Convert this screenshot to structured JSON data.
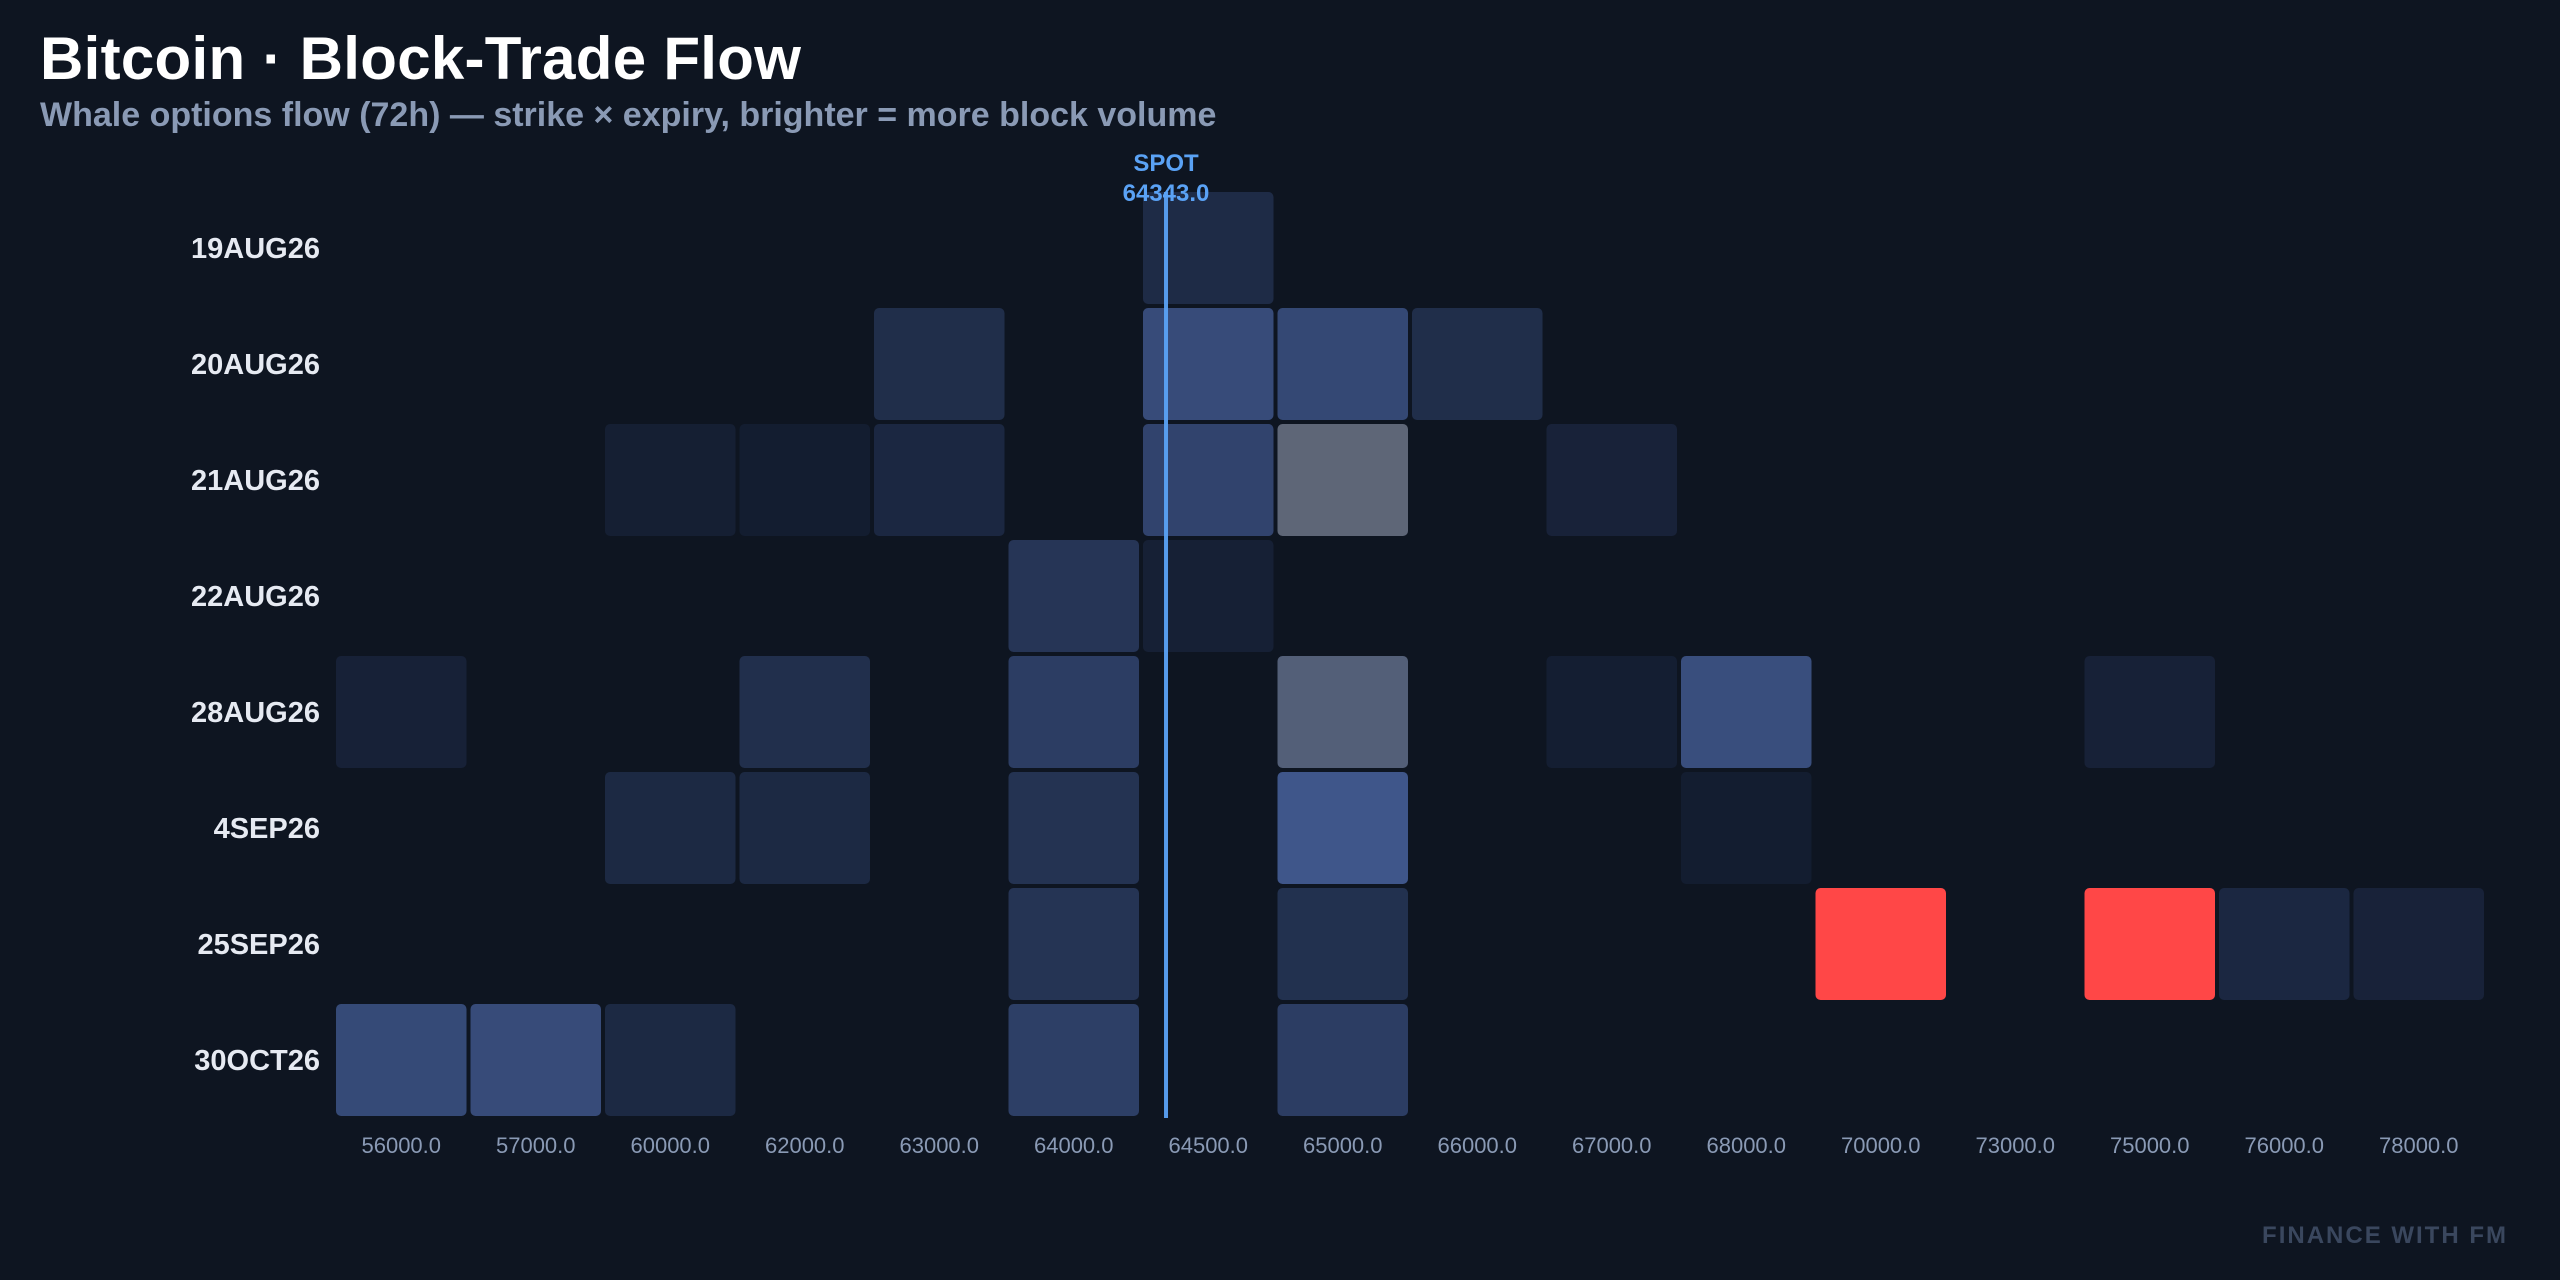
{
  "header": {
    "title": "Bitcoin · Block-Trade Flow",
    "subtitle": "Whale options flow (72h) — strike × expiry, brighter = more block volume"
  },
  "watermark": "FINANCE WITH FM",
  "colors": {
    "background": "#0e1521",
    "cell_low": "#121b2d",
    "cell_high": "#41598f",
    "cell_hot": "#ff4747",
    "cell_grey_low": "#4b5a78",
    "cell_grey_high": "#5e6677",
    "spot_line": "#5aa2f5"
  },
  "chart_data": {
    "type": "heatmap",
    "title": "Bitcoin · Block-Trade Flow",
    "xlabel": "",
    "ylabel": "",
    "x_categories": [
      "56000.0",
      "57000.0",
      "60000.0",
      "62000.0",
      "63000.0",
      "64000.0",
      "64500.0",
      "65000.0",
      "66000.0",
      "67000.0",
      "68000.0",
      "70000.0",
      "73000.0",
      "75000.0",
      "76000.0",
      "78000.0"
    ],
    "y_categories": [
      "19AUG26",
      "20AUG26",
      "21AUG26",
      "22AUG26",
      "28AUG26",
      "4SEP26",
      "25SEP26",
      "30OCT26"
    ],
    "spot": {
      "label": "SPOT",
      "value": "64343.0",
      "x": 64343.0
    },
    "legend": "none",
    "grid": false,
    "cells": [
      {
        "y": "19AUG26",
        "x": "64500.0",
        "v": 0.25,
        "kind": "blue"
      },
      {
        "y": "20AUG26",
        "x": "63000.0",
        "v": 0.3,
        "kind": "blue"
      },
      {
        "y": "20AUG26",
        "x": "64500.0",
        "v": 0.78,
        "kind": "blue"
      },
      {
        "y": "20AUG26",
        "x": "65000.0",
        "v": 0.72,
        "kind": "blue"
      },
      {
        "y": "20AUG26",
        "x": "66000.0",
        "v": 0.3,
        "kind": "blue"
      },
      {
        "y": "21AUG26",
        "x": "60000.0",
        "v": 0.06,
        "kind": "blue"
      },
      {
        "y": "21AUG26",
        "x": "62000.0",
        "v": 0.03,
        "kind": "blue"
      },
      {
        "y": "21AUG26",
        "x": "63000.0",
        "v": 0.2,
        "kind": "blue"
      },
      {
        "y": "21AUG26",
        "x": "64500.0",
        "v": 0.65,
        "kind": "blue"
      },
      {
        "y": "21AUG26",
        "x": "65000.0",
        "v": 1.0,
        "kind": "grey"
      },
      {
        "y": "21AUG26",
        "x": "67000.0",
        "v": 0.12,
        "kind": "blue"
      },
      {
        "y": "22AUG26",
        "x": "64000.0",
        "v": 0.42,
        "kind": "blue"
      },
      {
        "y": "22AUG26",
        "x": "64500.0",
        "v": 0.08,
        "kind": "blue"
      },
      {
        "y": "28AUG26",
        "x": "56000.0",
        "v": 0.1,
        "kind": "blue"
      },
      {
        "y": "28AUG26",
        "x": "62000.0",
        "v": 0.32,
        "kind": "blue"
      },
      {
        "y": "28AUG26",
        "x": "64000.0",
        "v": 0.55,
        "kind": "blue"
      },
      {
        "y": "28AUG26",
        "x": "65000.0",
        "v": 0.4,
        "kind": "grey"
      },
      {
        "y": "28AUG26",
        "x": "67000.0",
        "v": 0.05,
        "kind": "blue"
      },
      {
        "y": "28AUG26",
        "x": "68000.0",
        "v": 0.82,
        "kind": "blue"
      },
      {
        "y": "28AUG26",
        "x": "75000.0",
        "v": 0.1,
        "kind": "blue"
      },
      {
        "y": "4SEP26",
        "x": "60000.0",
        "v": 0.22,
        "kind": "blue"
      },
      {
        "y": "4SEP26",
        "x": "62000.0",
        "v": 0.22,
        "kind": "blue"
      },
      {
        "y": "4SEP26",
        "x": "64000.0",
        "v": 0.38,
        "kind": "blue"
      },
      {
        "y": "4SEP26",
        "x": "65000.0",
        "v": 0.95,
        "kind": "blue"
      },
      {
        "y": "4SEP26",
        "x": "68000.0",
        "v": 0.03,
        "kind": "blue"
      },
      {
        "y": "25SEP26",
        "x": "64000.0",
        "v": 0.4,
        "kind": "blue"
      },
      {
        "y": "25SEP26",
        "x": "65000.0",
        "v": 0.35,
        "kind": "blue"
      },
      {
        "y": "25SEP26",
        "x": "70000.0",
        "v": 1.0,
        "kind": "hot"
      },
      {
        "y": "25SEP26",
        "x": "75000.0",
        "v": 1.0,
        "kind": "hot"
      },
      {
        "y": "25SEP26",
        "x": "76000.0",
        "v": 0.2,
        "kind": "blue"
      },
      {
        "y": "25SEP26",
        "x": "78000.0",
        "v": 0.12,
        "kind": "blue"
      },
      {
        "y": "30OCT26",
        "x": "56000.0",
        "v": 0.75,
        "kind": "blue"
      },
      {
        "y": "30OCT26",
        "x": "57000.0",
        "v": 0.78,
        "kind": "blue"
      },
      {
        "y": "30OCT26",
        "x": "60000.0",
        "v": 0.22,
        "kind": "blue"
      },
      {
        "y": "30OCT26",
        "x": "64000.0",
        "v": 0.58,
        "kind": "blue"
      },
      {
        "y": "30OCT26",
        "x": "65000.0",
        "v": 0.55,
        "kind": "blue"
      }
    ]
  }
}
